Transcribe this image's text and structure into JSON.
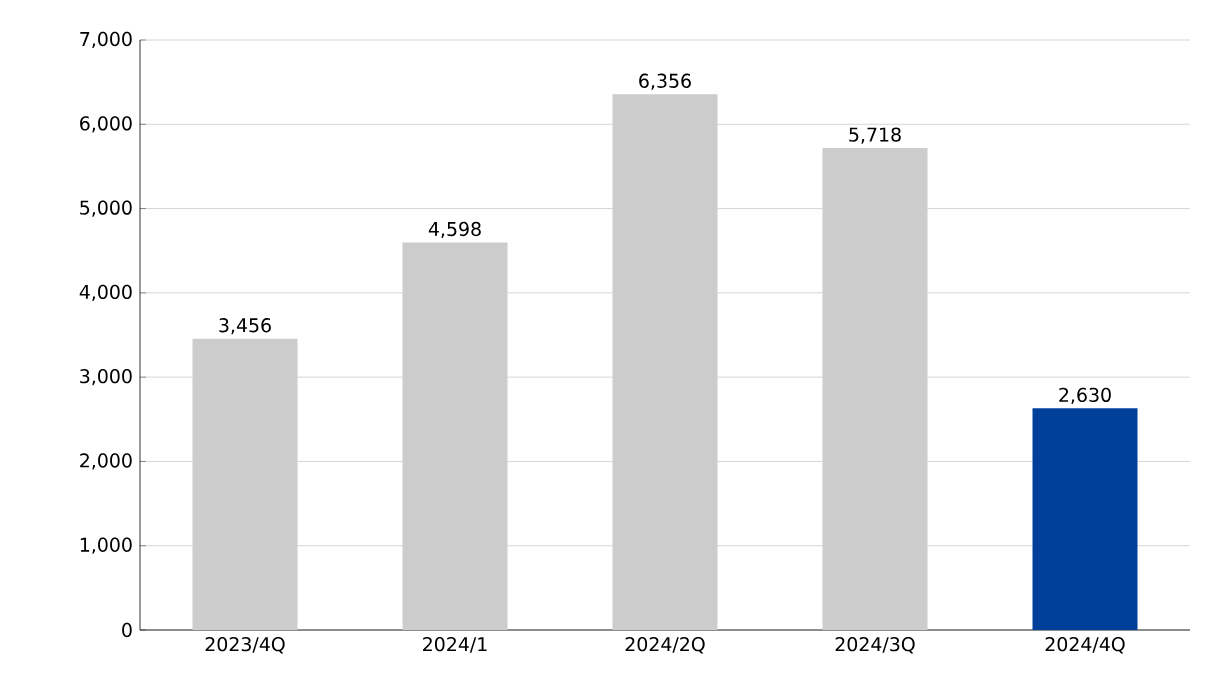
{
  "chart_data": {
    "type": "bar",
    "categories": [
      "2023/4Q",
      "2024/1",
      "2024/2Q",
      "2024/3Q",
      "2024/4Q"
    ],
    "values": [
      3456,
      4598,
      6356,
      5718,
      2630
    ],
    "colors": [
      "#cccccc",
      "#cccccc",
      "#cccccc",
      "#cccccc",
      "#00409a"
    ],
    "value_labels": [
      "3,456",
      "4,598",
      "6,356",
      "5,718",
      "2,630"
    ],
    "ylim": [
      0,
      7000
    ],
    "yticks": [
      0,
      {
        "value": 1000,
        "label": "1,000"
      },
      {
        "value": 2000,
        "label": "2,000"
      },
      {
        "value": 3000,
        "label": "3,000"
      },
      {
        "value": 4000,
        "label": "4,000"
      },
      {
        "value": 5000,
        "label": "5,000"
      },
      {
        "value": 6000,
        "label": "6,000"
      },
      {
        "value": 7000,
        "label": "7,000"
      }
    ],
    "grid": "y"
  }
}
